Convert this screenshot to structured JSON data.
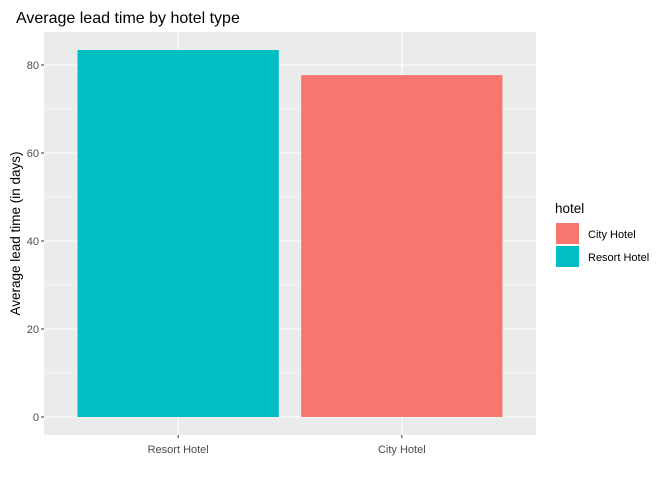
{
  "chart_data": {
    "type": "bar",
    "title": "Average lead time by hotel type",
    "xlabel": "",
    "ylabel": "Average lead time (in days)",
    "categories": [
      "Resort Hotel",
      "City Hotel"
    ],
    "values": [
      83.4,
      77.7
    ],
    "bar_colors": [
      "#00BFC4",
      "#F8766D"
    ],
    "ylim": [
      0,
      88
    ],
    "yticks": [
      0,
      20,
      40,
      60,
      80
    ],
    "grid": true,
    "panel_background": "#EBEBEB",
    "legend": {
      "title": "hotel",
      "position": "right",
      "entries": [
        {
          "label": "City Hotel",
          "color": "#F8766D"
        },
        {
          "label": "Resort Hotel",
          "color": "#00BFC4"
        }
      ]
    }
  }
}
